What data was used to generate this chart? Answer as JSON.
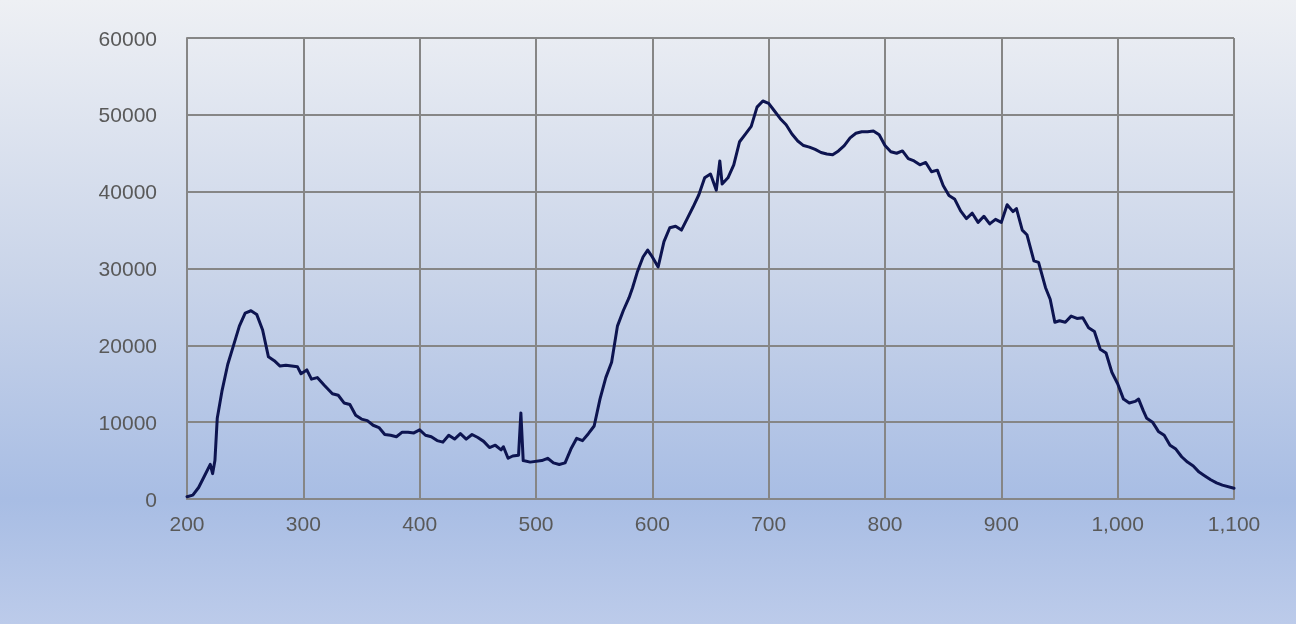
{
  "chart_data": {
    "type": "line",
    "x": [
      200,
      205,
      210,
      215,
      220,
      222,
      224,
      226,
      230,
      235,
      240,
      245,
      250,
      255,
      260,
      265,
      270,
      275,
      280,
      285,
      290,
      295,
      298,
      303,
      307,
      312,
      318,
      325,
      330,
      335,
      340,
      345,
      350,
      355,
      360,
      365,
      370,
      375,
      380,
      385,
      390,
      395,
      400,
      405,
      410,
      415,
      420,
      425,
      430,
      435,
      440,
      445,
      450,
      455,
      460,
      465,
      470,
      472,
      476,
      480,
      485,
      487,
      489,
      495,
      505,
      510,
      515,
      520,
      525,
      530,
      535,
      540,
      545,
      550,
      555,
      560,
      565,
      570,
      575,
      580,
      583,
      587,
      592,
      596,
      600,
      605,
      610,
      615,
      620,
      625,
      630,
      635,
      640,
      645,
      650,
      655,
      658,
      660,
      665,
      670,
      675,
      680,
      685,
      690,
      695,
      700,
      705,
      710,
      715,
      720,
      725,
      730,
      735,
      740,
      745,
      750,
      755,
      760,
      765,
      770,
      775,
      780,
      785,
      790,
      795,
      800,
      805,
      810,
      815,
      820,
      825,
      830,
      835,
      840,
      845,
      850,
      855,
      860,
      865,
      870,
      875,
      880,
      885,
      890,
      895,
      900,
      905,
      910,
      913,
      918,
      922,
      928,
      932,
      938,
      942,
      946,
      950,
      955,
      960,
      965,
      970,
      975,
      980,
      985,
      990,
      995,
      1000,
      1005,
      1010,
      1015,
      1018,
      1022,
      1025,
      1030,
      1035,
      1040,
      1045,
      1050,
      1055,
      1060,
      1065,
      1070,
      1075,
      1080,
      1085,
      1090,
      1100
    ],
    "series": [
      {
        "color": "#0d1450",
        "values": [
          300,
          500,
          1500,
          3000,
          4500,
          3300,
          5000,
          10500,
          14000,
          17500,
          20000,
          22500,
          24200,
          24500,
          24000,
          22000,
          18500,
          18000,
          17300,
          17400,
          17300,
          17200,
          16300,
          16800,
          15600,
          15800,
          14800,
          13700,
          13500,
          12500,
          12300,
          10900,
          10400,
          10200,
          9600,
          9300,
          8400,
          8300,
          8100,
          8700,
          8700,
          8600,
          9000,
          8300,
          8100,
          7600,
          7400,
          8300,
          7800,
          8500,
          7800,
          8400,
          8000,
          7500,
          6700,
          7000,
          6400,
          6800,
          5300,
          5600,
          5700,
          11200,
          5000,
          4800,
          5000,
          5300,
          4700,
          4500,
          4700,
          6500,
          7900,
          7600,
          8500,
          9500,
          13000,
          15800,
          17800,
          22500,
          24500,
          26200,
          27500,
          29500,
          31500,
          32400,
          31500,
          30200,
          33500,
          35300,
          35500,
          35000,
          36500,
          38000,
          39600,
          41800,
          42300,
          40200,
          44000,
          41000,
          41800,
          43500,
          46500,
          47500,
          48500,
          51000,
          51800,
          51500,
          50500,
          49500,
          48700,
          47500,
          46600,
          46000,
          45800,
          45500,
          45100,
          44900,
          44800,
          45300,
          46000,
          47000,
          47600,
          47800,
          47800,
          47900,
          47400,
          46000,
          45200,
          45000,
          45300,
          44300,
          44000,
          43500,
          43800,
          42600,
          42800,
          40800,
          39500,
          39000,
          37500,
          36500,
          37200,
          36000,
          36800,
          35800,
          36400,
          36000,
          38300,
          37400,
          37800,
          35000,
          34400,
          31000,
          30800,
          27500,
          26000,
          23000,
          23200,
          23000,
          23800,
          23500,
          23600,
          22300,
          21800,
          19500,
          19000,
          16500,
          15000,
          13000,
          12500,
          12700,
          13000,
          11500,
          10500,
          10000,
          8800,
          8300,
          7000,
          6500,
          5500,
          4800,
          4300,
          3500,
          3000,
          2500,
          2100,
          1800,
          1400
        ]
      }
    ],
    "xlim": [
      200,
      1100
    ],
    "xticks": [
      200,
      300,
      400,
      500,
      600,
      700,
      800,
      900,
      {
        "value": 1000,
        "label": "1,000"
      },
      {
        "value": 1100,
        "label": "1,100"
      }
    ],
    "ylim": [
      0,
      60000
    ],
    "yticks": [
      0,
      10000,
      20000,
      30000,
      40000,
      50000,
      60000
    ],
    "grid": true,
    "marker": "none",
    "line_style": "solid"
  }
}
